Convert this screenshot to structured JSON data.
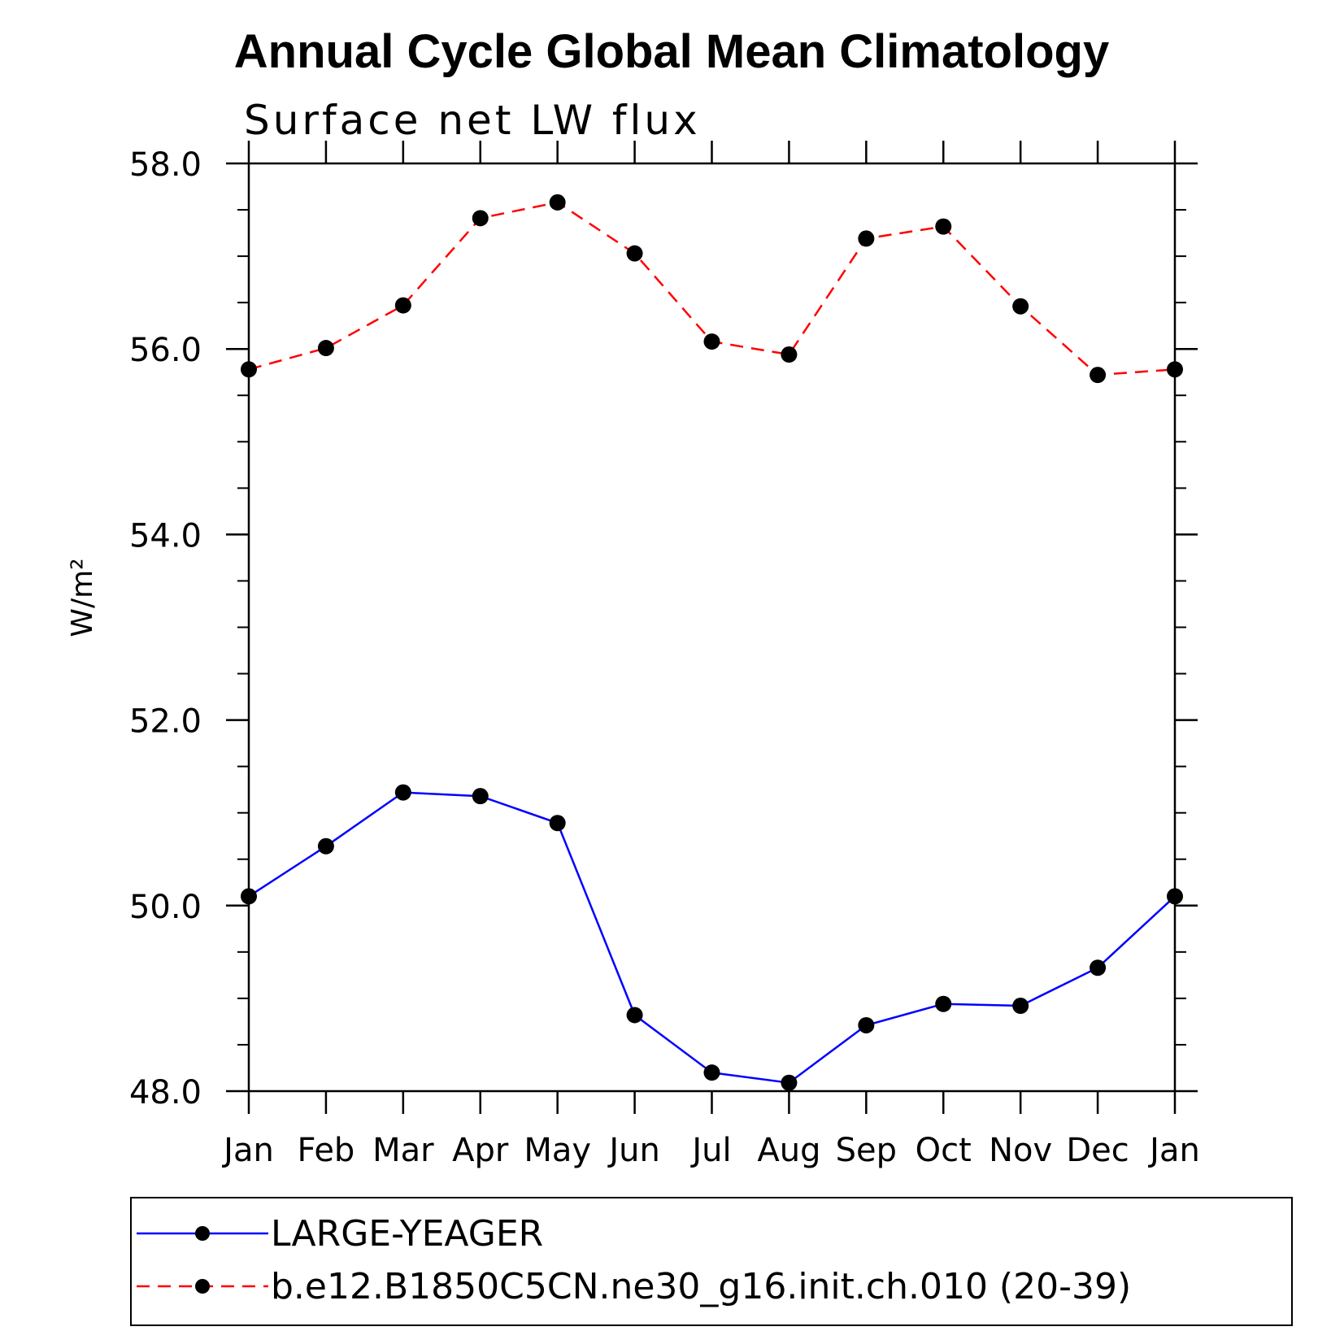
{
  "chart_data": {
    "type": "line",
    "title": "Annual Cycle Global Mean Climatology",
    "subtitle": "Surface net LW flux",
    "xlabel": "",
    "ylabel": "W/m²",
    "categories": [
      "Jan",
      "Feb",
      "Mar",
      "Apr",
      "May",
      "Jun",
      "Jul",
      "Aug",
      "Sep",
      "Oct",
      "Nov",
      "Dec",
      "Jan"
    ],
    "ylim": [
      48.0,
      58.0
    ],
    "yticks": [
      "48.0",
      "50.0",
      "52.0",
      "54.0",
      "56.0",
      "58.0"
    ],
    "grid": false,
    "legend_position": "bottom",
    "series": [
      {
        "name": "LARGE-YEAGER",
        "color": "#0000ff",
        "line_style": "solid",
        "marker": "filled-circle",
        "values": [
          50.1,
          50.64,
          51.22,
          51.18,
          50.89,
          48.82,
          48.2,
          48.09,
          48.71,
          48.94,
          48.92,
          49.33,
          50.1
        ]
      },
      {
        "name": "b.e12.B1850C5CN.ne30_g16.init.ch.010 (20-39)",
        "color": "#ff0000",
        "line_style": "dashed",
        "marker": "filled-circle",
        "values": [
          55.78,
          56.01,
          56.47,
          57.41,
          57.58,
          57.03,
          56.08,
          55.94,
          57.19,
          57.32,
          56.46,
          55.72,
          55.78
        ]
      }
    ]
  }
}
